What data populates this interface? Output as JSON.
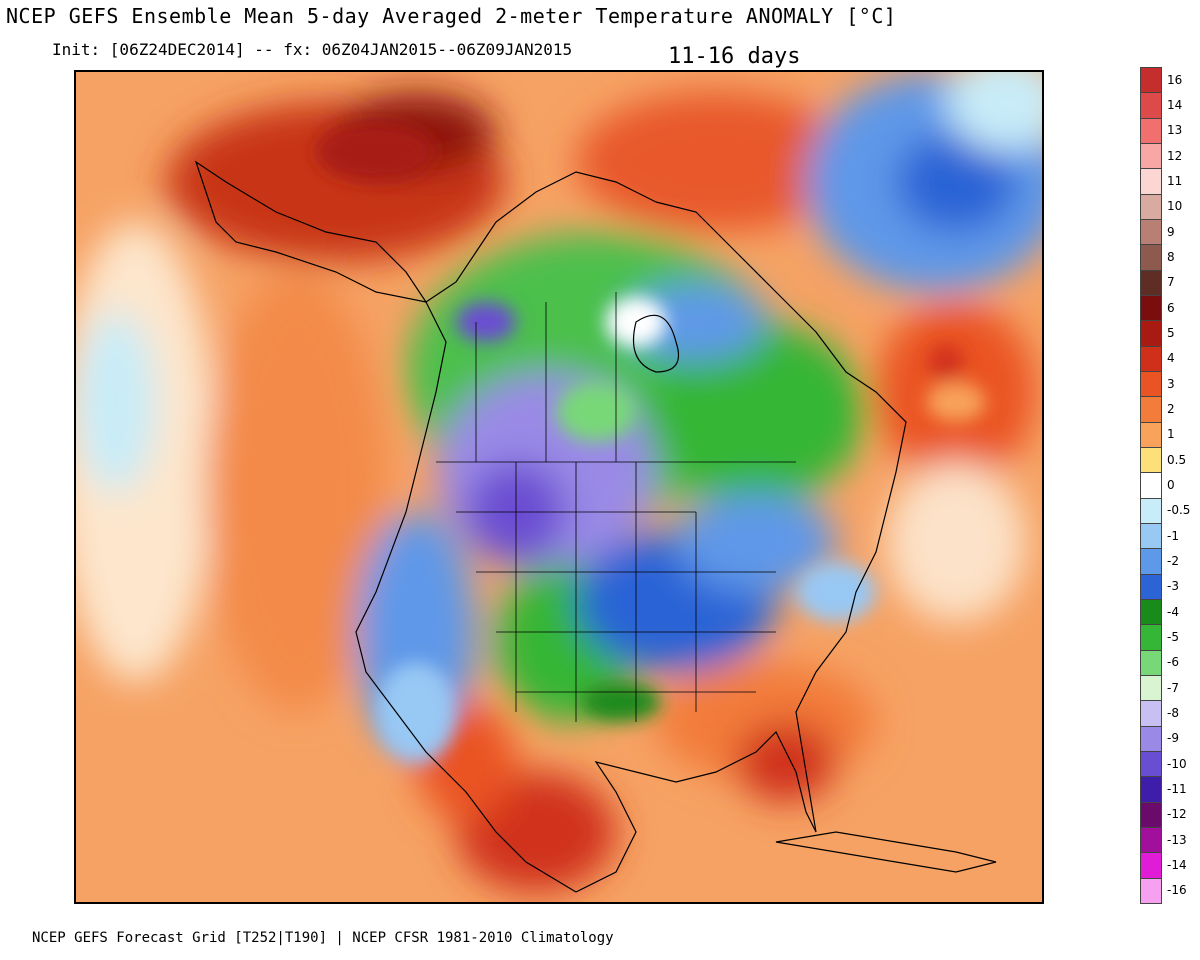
{
  "header": {
    "title": "NCEP GEFS Ensemble Mean 5-day Averaged 2-meter Temperature ANOMALY [°C]",
    "init": "Init: [06Z24DEC2014] -- fx: 06Z04JAN2015--06Z09JAN2015",
    "range": "11-16 days"
  },
  "footer": {
    "text": "NCEP GEFS Forecast Grid [T252|T190] | NCEP CFSR 1981-2010 Climatology"
  },
  "legend": {
    "units": "°C",
    "entries": [
      {
        "label": "16",
        "color": "#c62e2e"
      },
      {
        "label": "14",
        "color": "#de4a4a"
      },
      {
        "label": "13",
        "color": "#f07070"
      },
      {
        "label": "12",
        "color": "#f8a6a6"
      },
      {
        "label": "11",
        "color": "#fcd6d2"
      },
      {
        "label": "10",
        "color": "#d8aaa2"
      },
      {
        "label": "9",
        "color": "#b88074"
      },
      {
        "label": "8",
        "color": "#8c5a4e"
      },
      {
        "label": "7",
        "color": "#5e2e24"
      },
      {
        "label": "6",
        "color": "#7a0e0e"
      },
      {
        "label": "5",
        "color": "#a81a12"
      },
      {
        "label": "4",
        "color": "#d0301a"
      },
      {
        "label": "3",
        "color": "#ea5324"
      },
      {
        "label": "2",
        "color": "#f27c3a"
      },
      {
        "label": "1",
        "color": "#f8a25c"
      },
      {
        "label": "0.5",
        "color": "#fce07a"
      },
      {
        "label": "0",
        "color": "#ffffff"
      },
      {
        "label": "-0.5",
        "color": "#c8ecf8"
      },
      {
        "label": "-1",
        "color": "#98c8f4"
      },
      {
        "label": "-2",
        "color": "#5e98e8"
      },
      {
        "label": "-3",
        "color": "#2c64d6"
      },
      {
        "label": "-4",
        "color": "#1a8a1a"
      },
      {
        "label": "-5",
        "color": "#36b636"
      },
      {
        "label": "-6",
        "color": "#78d878"
      },
      {
        "label": "-7",
        "color": "#d8f4d0"
      },
      {
        "label": "-8",
        "color": "#c8c0f2"
      },
      {
        "label": "-9",
        "color": "#9a8ae6"
      },
      {
        "label": "-10",
        "color": "#6a4ed2"
      },
      {
        "label": "-11",
        "color": "#3e1ea8"
      },
      {
        "label": "-12",
        "color": "#6a0a6a"
      },
      {
        "label": "-13",
        "color": "#a0109a"
      },
      {
        "label": "-14",
        "color": "#e01cd6"
      },
      {
        "label": "-16",
        "color": "#f6a0f0"
      }
    ]
  }
}
